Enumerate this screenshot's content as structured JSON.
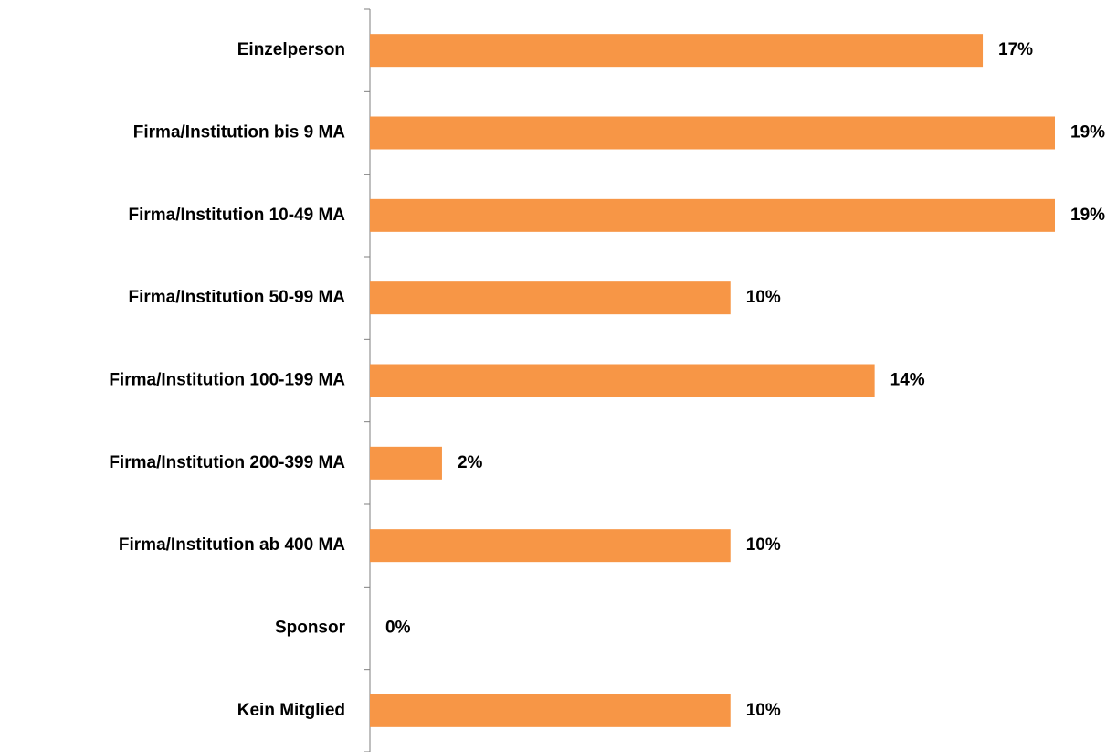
{
  "chart_data": {
    "type": "hbar",
    "categories": [
      "Einzelperson",
      "Firma/Institution bis 9 MA",
      "Firma/Institution 10-49 MA",
      "Firma/Institution 50-99 MA",
      "Firma/Institution 100-199 MA",
      "Firma/Institution 200-399 MA",
      "Firma/Institution ab 400 MA",
      "Sponsor",
      "Kein Mitglied"
    ],
    "values": [
      17,
      19,
      19,
      10,
      14,
      2,
      10,
      0,
      10
    ],
    "value_labels": [
      "17%",
      "19%",
      "19%",
      "10%",
      "14%",
      "2%",
      "10%",
      "0%",
      "10%"
    ],
    "color": "#f79646"
  }
}
